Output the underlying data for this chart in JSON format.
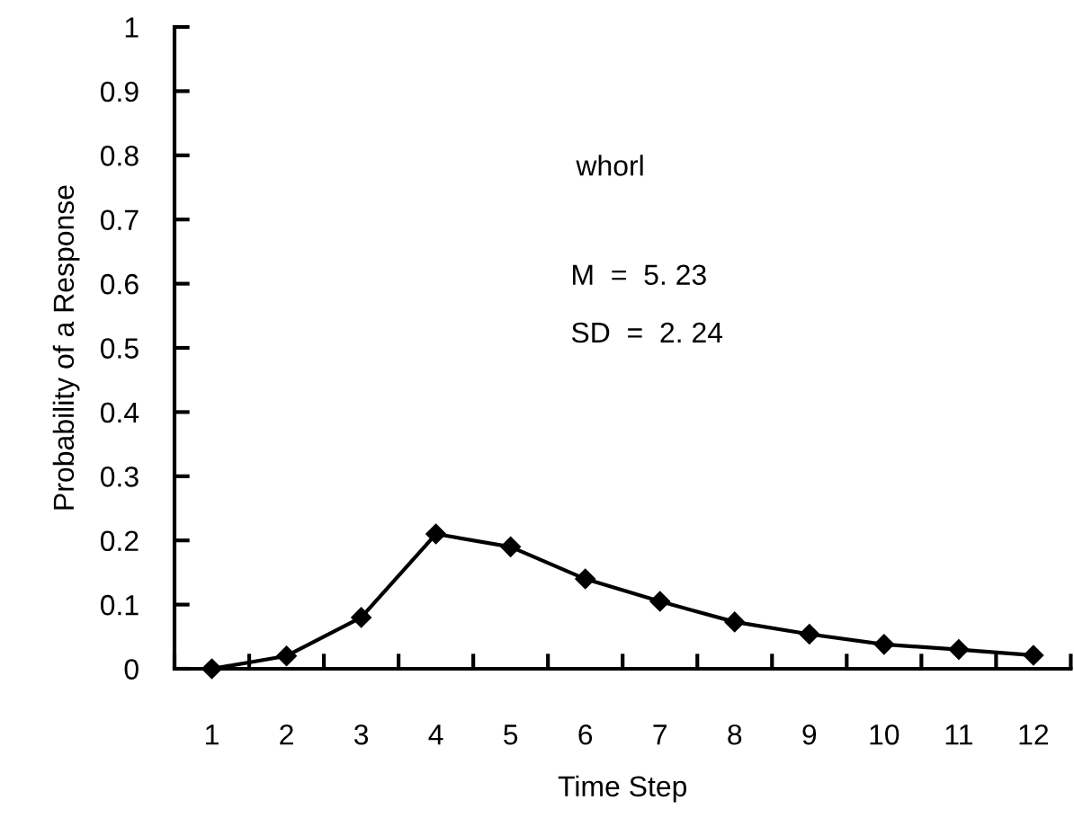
{
  "chart_data": {
    "type": "line",
    "xlabel": "Time Step",
    "ylabel": "Probability of a Response",
    "categories": [
      "1",
      "2",
      "3",
      "4",
      "5",
      "6",
      "7",
      "8",
      "9",
      "10",
      "11",
      "12"
    ],
    "series": [
      {
        "color": "#000000",
        "values": [
          0,
          0.02,
          0.08,
          0.21,
          0.19,
          0.14,
          0.105,
          0.073,
          0.054,
          0.038,
          0.03,
          0.021
        ]
      }
    ],
    "ylim": [
      0,
      1
    ],
    "yticks": [
      0,
      0.1,
      0.2,
      0.3,
      0.4,
      0.5,
      0.6,
      0.7,
      0.8,
      0.9,
      1
    ],
    "annotations": [
      "whorl",
      "M  =  5. 23",
      "SD  =  2. 24"
    ],
    "marker": "diamond",
    "line_style": "solid",
    "grid": false,
    "legend": false
  }
}
